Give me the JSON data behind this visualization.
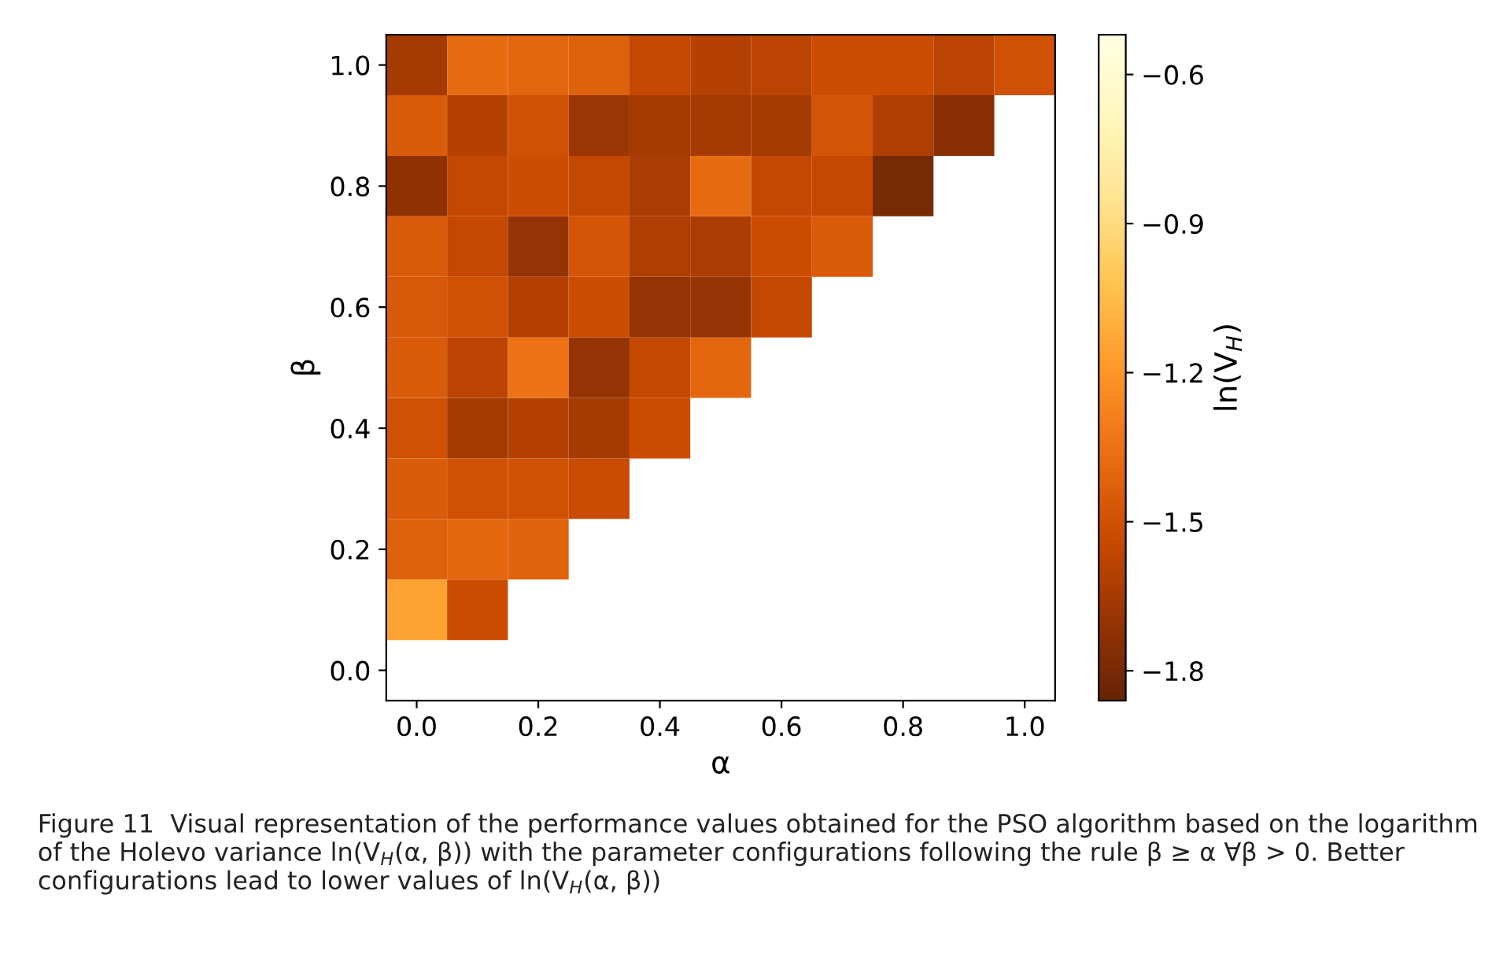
{
  "chart_data": {
    "type": "heatmap",
    "xlabel": "α",
    "ylabel": "β",
    "clabel": "ln(V$_{H}$)",
    "categories": [
      "0.0",
      null,
      "0.2",
      null,
      "0.4",
      null,
      "0.6",
      null,
      "0.8",
      null,
      "1.0"
    ],
    "y_categories": [
      "1.0",
      null,
      "0.8",
      null,
      "0.6",
      null,
      "0.4",
      null,
      "0.2",
      null,
      "0.0"
    ],
    "cells": [
      [
        -1.65,
        -1.38,
        -1.4,
        -1.43,
        -1.55,
        -1.6,
        -1.58,
        -1.52,
        -1.52,
        -1.58,
        -1.5
      ],
      [
        -1.45,
        -1.6,
        -1.5,
        -1.68,
        -1.65,
        -1.65,
        -1.65,
        -1.48,
        -1.62,
        -1.75,
        null
      ],
      [
        -1.72,
        -1.55,
        -1.52,
        -1.55,
        -1.63,
        -1.38,
        -1.55,
        -1.55,
        -1.8,
        null,
        null
      ],
      [
        -1.45,
        -1.55,
        -1.7,
        -1.48,
        -1.62,
        -1.63,
        -1.52,
        -1.45,
        null,
        null,
        null
      ],
      [
        -1.47,
        -1.5,
        -1.6,
        -1.53,
        -1.7,
        -1.7,
        -1.55,
        null,
        null,
        null,
        null
      ],
      [
        -1.45,
        -1.58,
        -1.35,
        -1.7,
        -1.55,
        -1.4,
        null,
        null,
        null,
        null,
        null
      ],
      [
        -1.5,
        -1.65,
        -1.6,
        -1.65,
        -1.52,
        null,
        null,
        null,
        null,
        null,
        null
      ],
      [
        -1.45,
        -1.5,
        -1.5,
        -1.53,
        null,
        null,
        null,
        null,
        null,
        null,
        null
      ],
      [
        -1.43,
        -1.4,
        -1.42,
        null,
        null,
        null,
        null,
        null,
        null,
        null,
        null
      ],
      [
        -1.15,
        -1.52,
        null,
        null,
        null,
        null,
        null,
        null,
        null,
        null,
        null
      ],
      [
        null,
        null,
        null,
        null,
        null,
        null,
        null,
        null,
        null,
        null,
        null
      ]
    ],
    "clim": [
      -1.86,
      -0.52
    ],
    "cticks": [
      -0.6,
      -0.9,
      -1.2,
      -1.5,
      -1.8
    ],
    "annotations": [
      "Figure 11  Visual representation of the performance values obtained for the PSO algorithm based on the logarithm of the Holevo variance ln(V$_{H}$(α, β)) with the parameter configurations following the rule β ≥ α ∀β > 0. Better configurations lead to lower values of ln(V$_{H}$(α, β))"
    ]
  }
}
